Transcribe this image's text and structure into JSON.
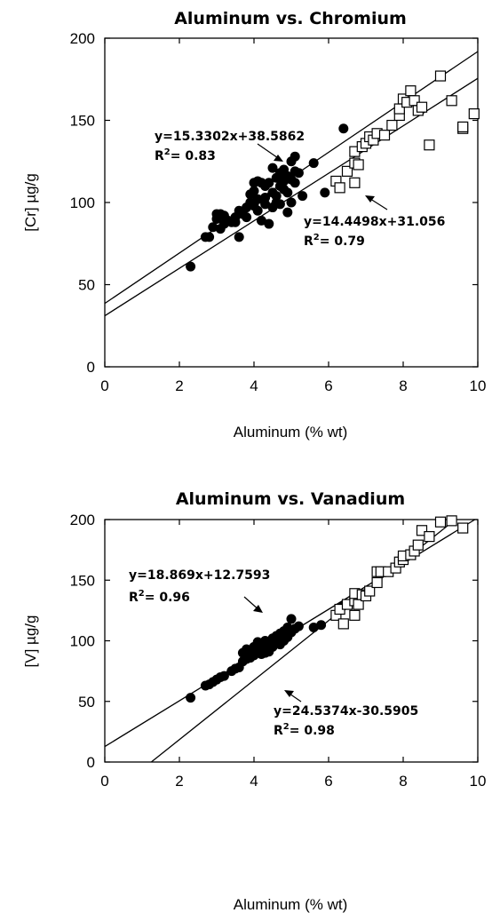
{
  "chart_data": [
    {
      "type": "scatter",
      "title": "Aluminum vs. Chromium",
      "xlabel": "Aluminum (% wt)",
      "ylabel": "[Cr] µg/g",
      "xlim": [
        0,
        10
      ],
      "ylim": [
        0,
        200
      ],
      "xticks": [
        0,
        2,
        4,
        6,
        8,
        10
      ],
      "yticks": [
        0,
        50,
        100,
        150,
        200
      ],
      "grid": false,
      "series": [
        {
          "marker": "filled-circle",
          "points": [
            [
              2.3,
              61
            ],
            [
              2.7,
              79
            ],
            [
              2.8,
              79
            ],
            [
              2.9,
              85
            ],
            [
              3.0,
              93
            ],
            [
              3.0,
              90
            ],
            [
              3.1,
              84
            ],
            [
              3.1,
              93
            ],
            [
              3.2,
              92
            ],
            [
              3.2,
              87
            ],
            [
              3.3,
              89
            ],
            [
              3.4,
              88
            ],
            [
              3.5,
              91
            ],
            [
              3.6,
              79
            ],
            [
              3.6,
              95
            ],
            [
              3.7,
              93
            ],
            [
              3.8,
              91
            ],
            [
              3.8,
              97
            ],
            [
              3.9,
              100
            ],
            [
              3.9,
              105
            ],
            [
              4.0,
              98
            ],
            [
              4.0,
              107
            ],
            [
              4.0,
              112
            ],
            [
              4.1,
              113
            ],
            [
              4.1,
              102
            ],
            [
              4.2,
              89
            ],
            [
              4.2,
              112
            ],
            [
              4.3,
              110
            ],
            [
              4.3,
              103
            ],
            [
              4.4,
              87
            ],
            [
              4.4,
              112
            ],
            [
              4.5,
              97
            ],
            [
              4.5,
              106
            ],
            [
              4.5,
              121
            ],
            [
              4.6,
              104
            ],
            [
              4.6,
              115
            ],
            [
              4.7,
              118
            ],
            [
              4.7,
              110
            ],
            [
              4.7,
              99
            ],
            [
              4.8,
              113
            ],
            [
              4.8,
              120
            ],
            [
              4.8,
              108
            ],
            [
              4.9,
              94
            ],
            [
              4.9,
              106
            ],
            [
              4.9,
              116
            ],
            [
              5.0,
              125
            ],
            [
              5.0,
              114
            ],
            [
              5.0,
              100
            ],
            [
              5.1,
              128
            ],
            [
              5.1,
              119
            ],
            [
              5.1,
              112
            ],
            [
              5.2,
              118
            ],
            [
              5.3,
              104
            ],
            [
              5.6,
              124
            ],
            [
              5.9,
              106
            ],
            [
              6.4,
              145
            ],
            [
              4.3,
              99
            ],
            [
              4.6,
              100
            ],
            [
              4.1,
              95
            ],
            [
              3.5,
              88
            ]
          ]
        },
        {
          "marker": "open-square",
          "points": [
            [
              6.2,
              113
            ],
            [
              6.3,
              109
            ],
            [
              6.5,
              119
            ],
            [
              6.7,
              112
            ],
            [
              6.7,
              124
            ],
            [
              6.8,
              123
            ],
            [
              6.7,
              131
            ],
            [
              6.9,
              134
            ],
            [
              7.0,
              136
            ],
            [
              7.1,
              140
            ],
            [
              7.2,
              138
            ],
            [
              7.3,
              142
            ],
            [
              7.5,
              141
            ],
            [
              7.7,
              147
            ],
            [
              7.9,
              153
            ],
            [
              7.9,
              157
            ],
            [
              8.0,
              163
            ],
            [
              8.1,
              161
            ],
            [
              8.2,
              168
            ],
            [
              8.3,
              162
            ],
            [
              8.4,
              156
            ],
            [
              8.5,
              158
            ],
            [
              8.7,
              135
            ],
            [
              9.0,
              177
            ],
            [
              9.3,
              162
            ],
            [
              9.6,
              145
            ],
            [
              9.6,
              146
            ],
            [
              9.9,
              154
            ]
          ]
        }
      ],
      "fits": [
        {
          "label": "y=15.3302x+38.5862",
          "r2": "R²= 0.83",
          "slope": 15.3302,
          "intercept": 38.5862,
          "x_range": [
            0,
            10
          ]
        },
        {
          "label": "y=14.4498x+31.056",
          "r2": "R²= 0.79",
          "slope": 14.4498,
          "intercept": 31.056,
          "x_range": [
            0,
            10
          ]
        }
      ]
    },
    {
      "type": "scatter",
      "title": "Aluminum vs. Vanadium",
      "xlabel": "Aluminum (% wt)",
      "ylabel": "[V] µg/g",
      "xlim": [
        0,
        10
      ],
      "ylim": [
        0,
        200
      ],
      "xticks": [
        0,
        2,
        4,
        6,
        8,
        10
      ],
      "yticks": [
        0,
        50,
        100,
        150,
        200
      ],
      "grid": false,
      "series": [
        {
          "marker": "filled-circle",
          "points": [
            [
              2.3,
              53
            ],
            [
              2.7,
              63
            ],
            [
              2.8,
              64
            ],
            [
              2.9,
              66
            ],
            [
              3.0,
              68
            ],
            [
              3.1,
              70
            ],
            [
              3.2,
              71
            ],
            [
              3.4,
              75
            ],
            [
              3.5,
              77
            ],
            [
              3.6,
              78
            ],
            [
              3.7,
              83
            ],
            [
              3.7,
              90
            ],
            [
              3.8,
              85
            ],
            [
              3.9,
              86
            ],
            [
              3.9,
              92
            ],
            [
              4.0,
              88
            ],
            [
              4.0,
              95
            ],
            [
              4.1,
              92
            ],
            [
              4.1,
              99
            ],
            [
              4.2,
              96
            ],
            [
              4.2,
              89
            ],
            [
              4.3,
              94
            ],
            [
              4.3,
              100
            ],
            [
              4.4,
              97
            ],
            [
              4.4,
              91
            ],
            [
              4.5,
              95
            ],
            [
              4.5,
              102
            ],
            [
              4.6,
              99
            ],
            [
              4.6,
              104
            ],
            [
              4.7,
              97
            ],
            [
              4.7,
              106
            ],
            [
              4.8,
              100
            ],
            [
              4.8,
              108
            ],
            [
              4.9,
              103
            ],
            [
              4.9,
              111
            ],
            [
              5.0,
              118
            ],
            [
              5.0,
              107
            ],
            [
              5.1,
              110
            ],
            [
              5.2,
              112
            ],
            [
              5.6,
              111
            ],
            [
              5.8,
              113
            ],
            [
              6.4,
              129
            ],
            [
              3.8,
              93
            ],
            [
              4.0,
              91
            ],
            [
              4.3,
              90
            ]
          ]
        },
        {
          "marker": "open-square",
          "points": [
            [
              6.2,
              121
            ],
            [
              6.3,
              126
            ],
            [
              6.4,
              114
            ],
            [
              6.5,
              130
            ],
            [
              6.7,
              133
            ],
            [
              6.7,
              121
            ],
            [
              6.8,
              130
            ],
            [
              6.7,
              139
            ],
            [
              6.9,
              138
            ],
            [
              7.0,
              137
            ],
            [
              7.1,
              141
            ],
            [
              7.3,
              148
            ],
            [
              7.3,
              157
            ],
            [
              7.4,
              157
            ],
            [
              7.6,
              157
            ],
            [
              7.8,
              160
            ],
            [
              7.9,
              165
            ],
            [
              8.0,
              167
            ],
            [
              8.0,
              170
            ],
            [
              8.2,
              171
            ],
            [
              8.3,
              174
            ],
            [
              8.4,
              179
            ],
            [
              8.5,
              191
            ],
            [
              8.7,
              186
            ],
            [
              9.0,
              198
            ],
            [
              9.3,
              199
            ],
            [
              9.6,
              193
            ]
          ]
        }
      ],
      "fits": [
        {
          "label": "y=18.869x+12.7593",
          "r2": "R²= 0.96",
          "slope": 18.869,
          "intercept": 12.7593,
          "x_range": [
            0,
            10
          ]
        },
        {
          "label": "y=24.5374x-30.5905",
          "r2": "R²= 0.98",
          "slope": 24.5374,
          "intercept": -30.5905,
          "x_range": [
            1.25,
            10
          ]
        }
      ]
    }
  ]
}
